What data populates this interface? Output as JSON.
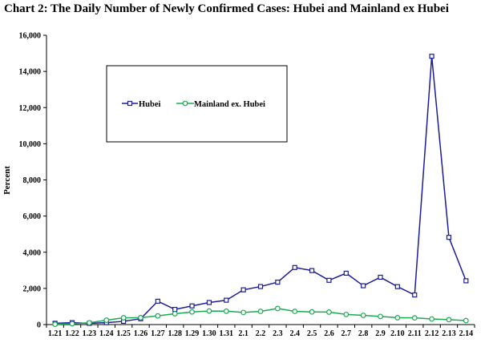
{
  "chart_data": {
    "type": "line",
    "title": "Chart 2: The Daily Number of Newly Confirmed Cases: Hubei and Mainland ex Hubei",
    "ylabel": "Percent",
    "xlabel": "",
    "ylim": [
      0,
      16000
    ],
    "yticks": [
      0,
      2000,
      4000,
      6000,
      8000,
      10000,
      12000,
      14000,
      16000
    ],
    "ytick_labels": [
      "0",
      "2,000",
      "4,000",
      "6,000",
      "8,000",
      "10,000",
      "12,000",
      "14,000",
      "16,000"
    ],
    "categories": [
      "1.21",
      "1.22",
      "1.23",
      "1.24",
      "1.25",
      "1.26",
      "1.27",
      "1.28",
      "1.29",
      "1.30",
      "1.31",
      "2.1",
      "2.2",
      "2.3",
      "2.4",
      "2.5",
      "2.6",
      "2.7",
      "2.8",
      "2.9",
      "2.10",
      "2.11",
      "2.12",
      "2.13",
      "2.14"
    ],
    "series": [
      {
        "name": "Hubei",
        "color": "#1c1c9c",
        "marker": "square",
        "values": [
          72,
          105,
          69,
          105,
          180,
          323,
          1291,
          840,
          1032,
          1220,
          1347,
          1921,
          2103,
          2345,
          3156,
          2987,
          2447,
          2841,
          2147,
          2618,
          2097,
          1638,
          14840,
          4823,
          2420
        ]
      },
      {
        "name": "Mainland ex. Hubei",
        "color": "#1aab50",
        "marker": "circle",
        "values": [
          20,
          45,
          100,
          240,
          375,
          380,
          480,
          600,
          700,
          750,
          740,
          670,
          730,
          890,
          730,
          700,
          690,
          560,
          510,
          450,
          380,
          370,
          310,
          270,
          220
        ]
      }
    ],
    "legend": {
      "placement": "top-left",
      "box": true
    },
    "grid": false
  }
}
